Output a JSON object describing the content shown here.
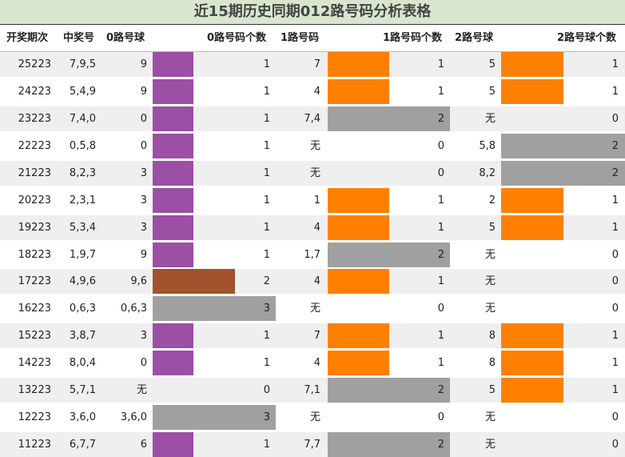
{
  "title": "近15期历史同期012路号码分析表格",
  "headers": {
    "period": "开奖期次",
    "numbers": "中奖号",
    "r0_ball": "0路号球",
    "r0_count": "0路号码个数",
    "r1_num": "1路号码",
    "r1_count": "1路号码个数",
    "r2_ball": "2路号球",
    "r2_count": "2路号球个数"
  },
  "colors": {
    "count_1": "#9b4fa5",
    "count_2": "#a0522d",
    "count_3": "#a0a0a0",
    "r1_count_1": "#ff8000",
    "r1_count_2": "#a0a0a0",
    "r2_count_1": "#ff8000",
    "r2_count_2": "#a0a0a0",
    "row_alt": "#efefef",
    "title_bg": "#d9e6cf"
  },
  "rows": [
    {
      "period": "25223",
      "numbers": "7,9,5",
      "r0": "9",
      "c0": 1,
      "c0_text": "1",
      "r1": "7",
      "c1": 1,
      "c1_text": "1",
      "r2": "5",
      "c2": 1,
      "c2_text": "1"
    },
    {
      "period": "24223",
      "numbers": "5,4,9",
      "r0": "9",
      "c0": 1,
      "c0_text": "1",
      "r1": "4",
      "c1": 1,
      "c1_text": "1",
      "r2": "5",
      "c2": 1,
      "c2_text": "1"
    },
    {
      "period": "23223",
      "numbers": "7,4,0",
      "r0": "0",
      "c0": 1,
      "c0_text": "1",
      "r1": "7,4",
      "c1": 2,
      "c1_text": "2",
      "r2": "无",
      "c2": 0,
      "c2_text": "0"
    },
    {
      "period": "22223",
      "numbers": "0,5,8",
      "r0": "0",
      "c0": 1,
      "c0_text": "1",
      "r1": "无",
      "c1": 0,
      "c1_text": "0",
      "r2": "5,8",
      "c2": 2,
      "c2_text": "2"
    },
    {
      "period": "21223",
      "numbers": "8,2,3",
      "r0": "3",
      "c0": 1,
      "c0_text": "1",
      "r1": "无",
      "c1": 0,
      "c1_text": "0",
      "r2": "8,2",
      "c2": 2,
      "c2_text": "2"
    },
    {
      "period": "20223",
      "numbers": "2,3,1",
      "r0": "3",
      "c0": 1,
      "c0_text": "1",
      "r1": "1",
      "c1": 1,
      "c1_text": "1",
      "r2": "2",
      "c2": 1,
      "c2_text": "1"
    },
    {
      "period": "19223",
      "numbers": "5,3,4",
      "r0": "3",
      "c0": 1,
      "c0_text": "1",
      "r1": "4",
      "c1": 1,
      "c1_text": "1",
      "r2": "5",
      "c2": 1,
      "c2_text": "1"
    },
    {
      "period": "18223",
      "numbers": "1,9,7",
      "r0": "9",
      "c0": 1,
      "c0_text": "1",
      "r1": "1,7",
      "c1": 2,
      "c1_text": "2",
      "r2": "无",
      "c2": 0,
      "c2_text": "0"
    },
    {
      "period": "17223",
      "numbers": "4,9,6",
      "r0": "9,6",
      "c0": 2,
      "c0_text": "2",
      "r1": "4",
      "c1": 1,
      "c1_text": "1",
      "r2": "无",
      "c2": 0,
      "c2_text": "0"
    },
    {
      "period": "16223",
      "numbers": "0,6,3",
      "r0": "0,6,3",
      "c0": 3,
      "c0_text": "3",
      "r1": "无",
      "c1": 0,
      "c1_text": "0",
      "r2": "无",
      "c2": 0,
      "c2_text": "0"
    },
    {
      "period": "15223",
      "numbers": "3,8,7",
      "r0": "3",
      "c0": 1,
      "c0_text": "1",
      "r1": "7",
      "c1": 1,
      "c1_text": "1",
      "r2": "8",
      "c2": 1,
      "c2_text": "1"
    },
    {
      "period": "14223",
      "numbers": "8,0,4",
      "r0": "0",
      "c0": 1,
      "c0_text": "1",
      "r1": "4",
      "c1": 1,
      "c1_text": "1",
      "r2": "8",
      "c2": 1,
      "c2_text": "1"
    },
    {
      "period": "13223",
      "numbers": "5,7,1",
      "r0": "无",
      "c0": 0,
      "c0_text": "0",
      "r1": "7,1",
      "c1": 2,
      "c1_text": "2",
      "r2": "5",
      "c2": 1,
      "c2_text": "1"
    },
    {
      "period": "12223",
      "numbers": "3,6,0",
      "r0": "3,6,0",
      "c0": 3,
      "c0_text": "3",
      "r1": "无",
      "c1": 0,
      "c1_text": "0",
      "r2": "无",
      "c2": 0,
      "c2_text": "0"
    },
    {
      "period": "11223",
      "numbers": "6,7,7",
      "r0": "6",
      "c0": 1,
      "c0_text": "1",
      "r1": "7,7",
      "c1": 2,
      "c1_text": "2",
      "r2": "无",
      "c2": 0,
      "c2_text": "0"
    }
  ]
}
